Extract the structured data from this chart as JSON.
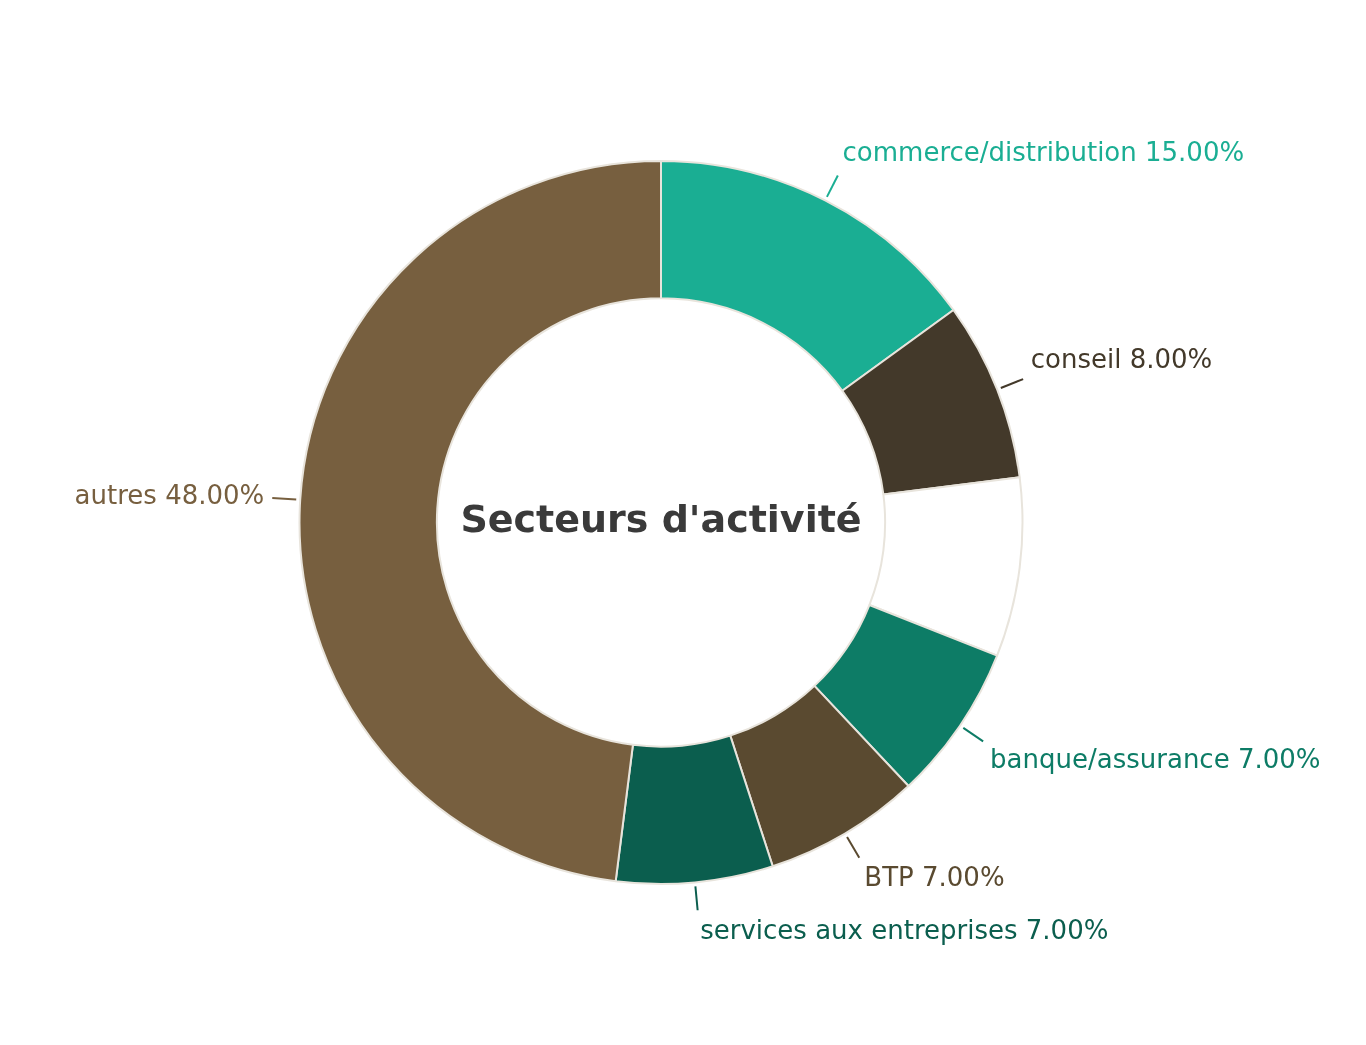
{
  "chart_data": {
    "type": "donut",
    "title": "Secteurs d'activité",
    "categories": [
      "commerce/distribution",
      "conseil",
      null,
      "banque/assurance",
      "BTP",
      "services aux entreprises",
      "autres"
    ],
    "values": [
      15,
      8,
      8,
      7,
      7,
      7,
      48
    ],
    "value_labels": [
      "15.00%",
      "8.00%",
      null,
      "7.00%",
      "7.00%",
      "7.00%",
      "48.00%"
    ],
    "colors": [
      "#1aae93",
      "#43392a",
      "#ffffff",
      "#0d7c66",
      "#5a4a30",
      "#0b5e4e",
      "#775f3f"
    ],
    "legend": false
  }
}
